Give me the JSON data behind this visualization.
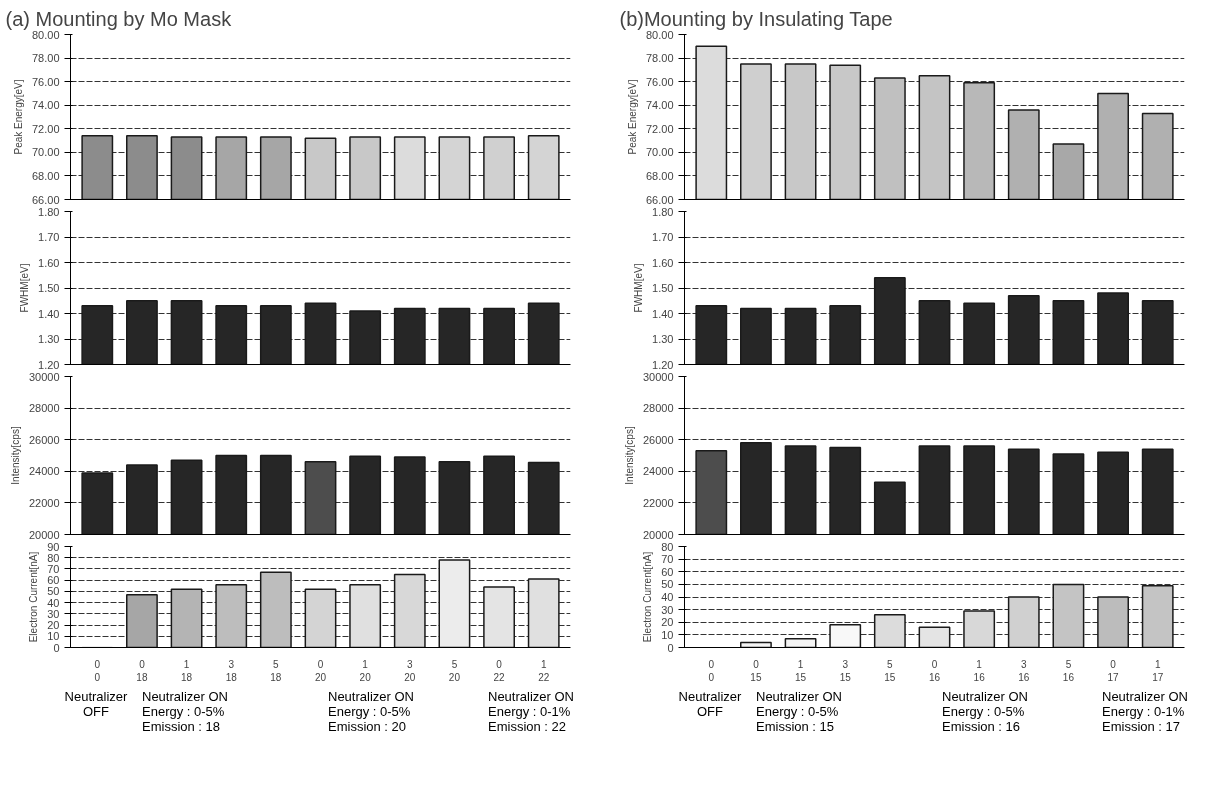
{
  "chart_data": [
    {
      "type": "bar",
      "title": "(a)  Mounting by Mo Mask",
      "ylabel": "Peak Energy[eV]",
      "values": [
        71.4,
        71.4,
        71.3,
        71.3,
        71.3,
        71.2,
        71.3,
        71.3,
        71.3,
        71.3,
        71.4
      ],
      "colors": [
        "#8c8c8c",
        "#8c8c8c",
        "#8c8c8c",
        "#a6a6a6",
        "#a6a6a6",
        "#c8c8c8",
        "#c8c8c8",
        "#dcdcdc",
        "#d4d4d4",
        "#d0d0d0",
        "#d4d4d4"
      ],
      "ylim": [
        66,
        80
      ],
      "yticks": [
        {
          "value": 66,
          "label": "66.00"
        },
        {
          "value": 68,
          "label": "68.00"
        },
        {
          "value": 70,
          "label": "70.00"
        },
        {
          "value": 72,
          "label": "72.00"
        },
        {
          "value": 74,
          "label": "74.00"
        },
        {
          "value": 76,
          "label": "76.00"
        },
        {
          "value": 78,
          "label": "78.00"
        },
        {
          "value": 80,
          "label": "80.00"
        }
      ],
      "grid": "y",
      "tick_labels": "y"
    },
    {
      "type": "bar",
      "ylabel": "FWHM[eV]",
      "values": [
        1.43,
        1.45,
        1.45,
        1.43,
        1.43,
        1.44,
        1.41,
        1.42,
        1.42,
        1.42,
        1.44
      ],
      "color": "#262626",
      "ylim": [
        1.2,
        1.8
      ],
      "yticks": [
        {
          "value": 1.2,
          "label": "1.20"
        },
        {
          "value": 1.3,
          "label": "1.30"
        },
        {
          "value": 1.4,
          "label": "1.40"
        },
        {
          "value": 1.5,
          "label": "1.50"
        },
        {
          "value": 1.6,
          "label": "1.60"
        },
        {
          "value": 1.7,
          "label": "1.70"
        },
        {
          "value": 1.8,
          "label": "1.80"
        }
      ],
      "grid": "y",
      "tick_labels": "y"
    },
    {
      "type": "bar",
      "ylabel": "Intensity[cps]",
      "values": [
        23900,
        24400,
        24700,
        25000,
        25000,
        24600,
        24950,
        24900,
        24600,
        24950,
        24550
      ],
      "colors": [
        "#262626",
        "#262626",
        "#262626",
        "#262626",
        "#262626",
        "#4d4d4d",
        "#262626",
        "#262626",
        "#262626",
        "#262626",
        "#262626"
      ],
      "ylim": [
        20000,
        30000
      ],
      "yticks": [
        20000,
        22000,
        24000,
        26000,
        28000,
        30000
      ],
      "grid": "y",
      "tick_labels": "y"
    },
    {
      "type": "bar",
      "ylabel": "Electron Current[nA]",
      "categories": [
        "0\n0",
        "0\n18",
        "1\n18",
        "3\n18",
        "5\n18",
        "0\n20",
        "1\n20",
        "3\n20",
        "5\n20",
        "0\n22",
        "1\n22"
      ],
      "values": [
        0,
        47,
        52,
        56,
        67,
        52,
        56,
        65,
        78,
        54,
        61
      ],
      "colors": [
        "#bdbdbd",
        "#a6a6a6",
        "#b4b4b4",
        "#bdbdbd",
        "#bdbdbd",
        "#d4d4d4",
        "#e0e0e0",
        "#d8d8d8",
        "#ececec",
        "#e4e4e4",
        "#e0e0e0"
      ],
      "ylim": [
        0,
        90
      ],
      "yticks": [
        0,
        10,
        20,
        30,
        40,
        50,
        60,
        70,
        80,
        90
      ],
      "grid": "y",
      "annotations": [
        "Neutralizer\nOFF",
        "Neutralizer ON\nEnergy  :  0-5%\nEmission : 18",
        "Neutralizer ON\nEnergy  :  0-5%\nEmission : 20",
        "Neutralizer ON\nEnergy  :  0-1%\nEmission : 22"
      ]
    },
    {
      "type": "bar",
      "title": "(b)Mounting by Insulating Tape",
      "ylabel": "Peak Energy[eV]",
      "values": [
        79.0,
        77.5,
        77.5,
        77.4,
        76.3,
        76.5,
        75.9,
        73.6,
        70.7,
        75.0,
        73.3
      ],
      "colors": [
        "#dcdcdc",
        "#cfcfcf",
        "#c8c8c8",
        "#c8c8c8",
        "#c0c0c0",
        "#c4c4c4",
        "#b8b8b8",
        "#b0b0b0",
        "#a8a8a8",
        "#b0b0b0",
        "#b0b0b0"
      ],
      "ylim": [
        66,
        80
      ],
      "yticks": [
        {
          "value": 66,
          "label": "66.00"
        },
        {
          "value": 68,
          "label": "68.00"
        },
        {
          "value": 70,
          "label": "70.00"
        },
        {
          "value": 72,
          "label": "72.00"
        },
        {
          "value": 74,
          "label": "74.00"
        },
        {
          "value": 76,
          "label": "76.00"
        },
        {
          "value": 78,
          "label": "78.00"
        },
        {
          "value": 80,
          "label": "80.00"
        }
      ],
      "grid": "y",
      "tick_labels": "y"
    },
    {
      "type": "bar",
      "ylabel": "FWHM[eV]",
      "values": [
        1.43,
        1.42,
        1.42,
        1.43,
        1.54,
        1.45,
        1.44,
        1.47,
        1.45,
        1.48,
        1.45
      ],
      "color": "#262626",
      "ylim": [
        1.2,
        1.8
      ],
      "yticks": [
        {
          "value": 1.2,
          "label": "1.20"
        },
        {
          "value": 1.3,
          "label": "1.30"
        },
        {
          "value": 1.4,
          "label": "1.40"
        },
        {
          "value": 1.5,
          "label": "1.50"
        },
        {
          "value": 1.6,
          "label": "1.60"
        },
        {
          "value": 1.7,
          "label": "1.70"
        },
        {
          "value": 1.8,
          "label": "1.80"
        }
      ],
      "grid": "y",
      "tick_labels": "y"
    },
    {
      "type": "bar",
      "ylabel": "Intensity[cps]",
      "values": [
        25300,
        25800,
        25600,
        25500,
        23300,
        25600,
        25600,
        25400,
        25100,
        25200,
        25400
      ],
      "colors": [
        "#4d4d4d",
        "#262626",
        "#262626",
        "#262626",
        "#262626",
        "#262626",
        "#262626",
        "#262626",
        "#262626",
        "#262626",
        "#262626"
      ],
      "ylim": [
        20000,
        30000
      ],
      "yticks": [
        20000,
        22000,
        24000,
        26000,
        28000,
        30000
      ],
      "grid": "y",
      "tick_labels": "y"
    },
    {
      "type": "bar",
      "ylabel": "Electron Current[nA]",
      "categories": [
        "0\n0",
        "0\n15",
        "1\n15",
        "3\n15",
        "5\n15",
        "0\n16",
        "1\n16",
        "3\n16",
        "5\n16",
        "0\n17",
        "1\n17"
      ],
      "values": [
        0,
        4,
        7,
        18,
        26,
        16,
        29,
        40,
        50,
        40,
        49
      ],
      "colors": [
        "#ffffff",
        "#f4f4f4",
        "#f4f4f4",
        "#f8f8f8",
        "#dcdcdc",
        "#e4e4e4",
        "#d8d8d8",
        "#d0d0d0",
        "#c4c4c4",
        "#bcbcbc",
        "#c4c4c4"
      ],
      "ylim": [
        0,
        80
      ],
      "yticks": [
        0,
        10,
        20,
        30,
        40,
        50,
        60,
        70,
        80
      ],
      "grid": "y",
      "annotations": [
        "Neutralizer\nOFF",
        "Neutralizer ON\nEnergy  :  0-5%\nEmission : 15",
        "Neutralizer ON\nEnergy  :  0-5%\nEmission : 16",
        "Neutralizer ON\nEnergy  :  0-1%\nEmission : 17"
      ]
    }
  ]
}
